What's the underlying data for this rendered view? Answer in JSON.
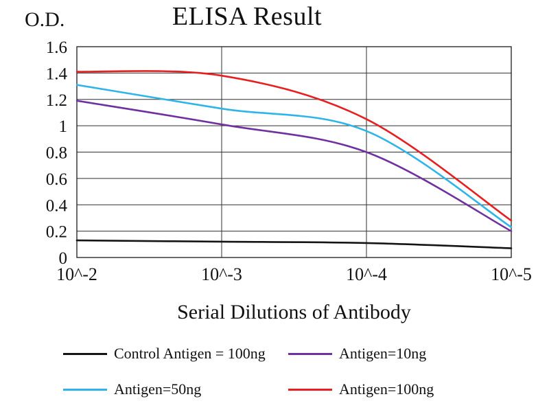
{
  "chart_data": {
    "type": "line",
    "title": "ELISA Result",
    "ylabel": "O.D.",
    "xlabel": "Serial Dilutions of Antibody",
    "categories": [
      "10^-2",
      "10^-3",
      "10^-4",
      "10^-5"
    ],
    "ylim": [
      0,
      1.6
    ],
    "ytick_labels": [
      "0",
      "0.2",
      "0.4",
      "0.6",
      "0.8",
      "1",
      "1.2",
      "1.4",
      "1.6"
    ],
    "grid": true,
    "legend_position": "bottom",
    "axis_color": "#1a1a1a",
    "grid_color": "#2f2f2f",
    "series": [
      {
        "name": "Control Antigen = 100ng",
        "color": "#141414",
        "values": [
          0.13,
          0.12,
          0.11,
          0.07
        ]
      },
      {
        "name": "Antigen=10ng",
        "color": "#7030a0",
        "values": [
          1.19,
          1.01,
          0.8,
          0.2
        ]
      },
      {
        "name": "Antigen=50ng",
        "color": "#2fb4e9",
        "values": [
          1.31,
          1.13,
          0.96,
          0.23
        ]
      },
      {
        "name": "Antigen=100ng",
        "color": "#e62020",
        "values": [
          1.41,
          1.38,
          1.05,
          0.28
        ]
      }
    ]
  }
}
